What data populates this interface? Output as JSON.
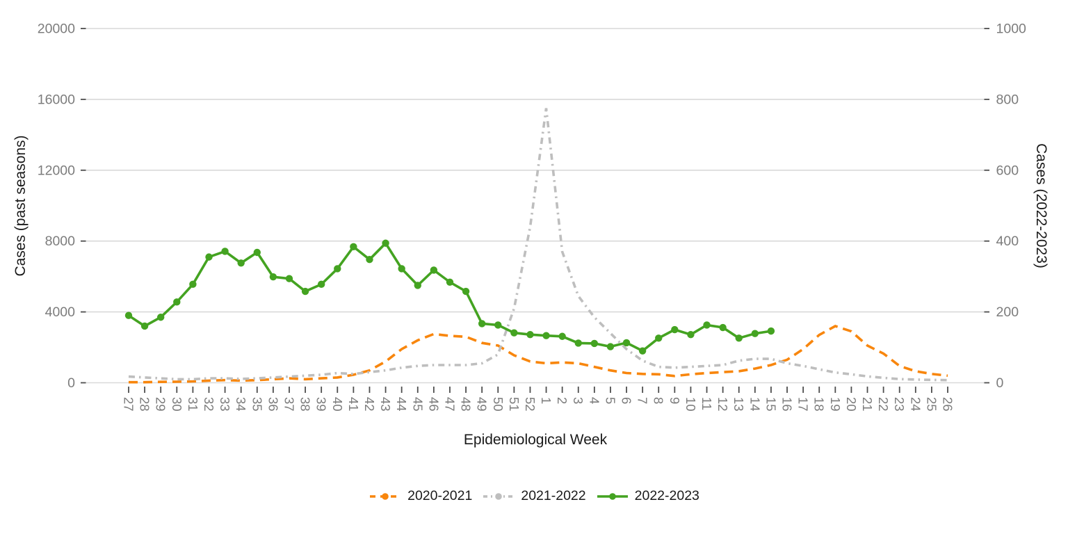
{
  "chart_data": {
    "type": "line",
    "title": "",
    "xlabel": "Epidemiological Week",
    "ylabel_left": "Cases (past seasons)",
    "ylabel_right": "Cases (2022-2023)",
    "grid": "horizontal",
    "legend_position": "bottom",
    "grid_color": "#d9d9d9",
    "tick_color": "#4d4d4d",
    "tick_label_color": "#7c7c7c",
    "x_categories": [
      "27",
      "28",
      "29",
      "30",
      "31",
      "32",
      "33",
      "34",
      "35",
      "36",
      "37",
      "38",
      "39",
      "40",
      "41",
      "42",
      "43",
      "44",
      "45",
      "46",
      "47",
      "48",
      "49",
      "50",
      "51",
      "52",
      "1",
      "2",
      "3",
      "4",
      "5",
      "6",
      "7",
      "8",
      "9",
      "10",
      "11",
      "12",
      "13",
      "14",
      "15",
      "16",
      "17",
      "18",
      "19",
      "20",
      "21",
      "22",
      "23",
      "24",
      "25",
      "26"
    ],
    "left_axis": {
      "ticks": [
        0,
        4000,
        8000,
        12000,
        16000,
        20000
      ],
      "range": [
        0,
        20000
      ]
    },
    "right_axis": {
      "ticks": [
        0,
        200,
        400,
        600,
        800,
        1000
      ],
      "range": [
        0,
        1000
      ]
    },
    "series": [
      {
        "name": "2020-2021",
        "axis": "left",
        "style": "dashed",
        "color": "#f8860d",
        "values": [
          30,
          30,
          50,
          60,
          80,
          120,
          150,
          120,
          150,
          200,
          250,
          200,
          250,
          300,
          450,
          700,
          1200,
          1900,
          2400,
          2750,
          2650,
          2600,
          2250,
          2100,
          1550,
          1200,
          1100,
          1150,
          1100,
          900,
          700,
          550,
          500,
          480,
          380,
          480,
          550,
          600,
          650,
          800,
          1000,
          1300,
          1900,
          2700,
          3200,
          2900,
          2100,
          1650,
          950,
          650,
          500,
          400
        ]
      },
      {
        "name": "2021-2022",
        "axis": "left",
        "style": "dash-dot",
        "color": "#bebebe",
        "values": [
          350,
          300,
          250,
          200,
          200,
          250,
          250,
          220,
          250,
          300,
          350,
          400,
          450,
          550,
          500,
          600,
          700,
          850,
          950,
          1000,
          1000,
          1000,
          1100,
          1600,
          4200,
          8800,
          15500,
          7400,
          4900,
          3700,
          2800,
          1900,
          1250,
          900,
          850,
          900,
          950,
          1000,
          1250,
          1350,
          1350,
          1100,
          950,
          760,
          580,
          480,
          360,
          280,
          210,
          180,
          160,
          150
        ]
      },
      {
        "name": "2022-2023",
        "axis": "right",
        "style": "solid-points",
        "color": "#44a321",
        "values": [
          190,
          160,
          185,
          228,
          278,
          355,
          371,
          338,
          368,
          299,
          294,
          258,
          278,
          322,
          384,
          348,
          394,
          322,
          275,
          318,
          284,
          258,
          167,
          163,
          141,
          136,
          133,
          131,
          112,
          111,
          102,
          113,
          90,
          126,
          150,
          136,
          163,
          156,
          126,
          139,
          146,
          null,
          null,
          null,
          null,
          null,
          null,
          null,
          null,
          null,
          null,
          null
        ]
      }
    ]
  }
}
